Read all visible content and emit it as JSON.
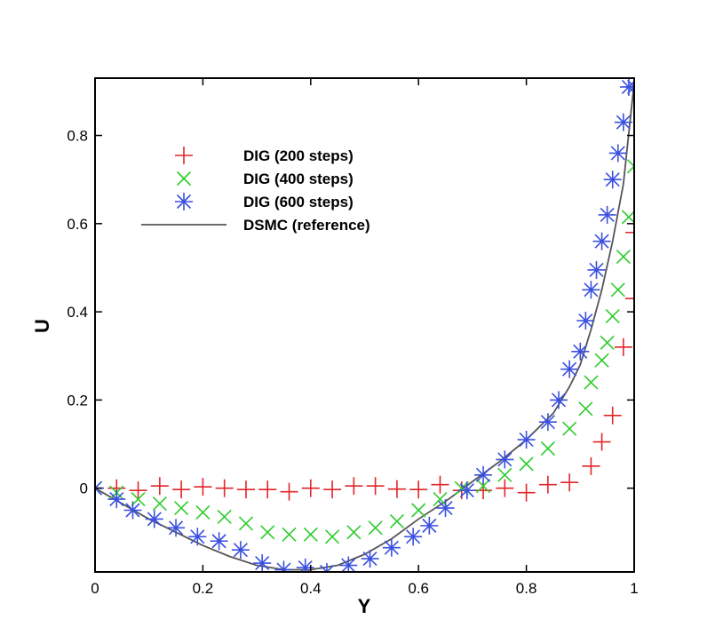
{
  "chart_data": {
    "type": "scatter",
    "title": "",
    "xlabel": "Y",
    "ylabel": "U",
    "xlim": [
      0,
      1
    ],
    "ylim": [
      -0.19,
      0.93
    ],
    "grid": false,
    "legend_position": "top-left",
    "x_ticks": [
      {
        "value": 0,
        "label": "0"
      },
      {
        "value": 0.2,
        "label": "0.2"
      },
      {
        "value": 0.4,
        "label": "0.4"
      },
      {
        "value": 0.6,
        "label": "0.6"
      },
      {
        "value": 0.8,
        "label": "0.8"
      },
      {
        "value": 1,
        "label": "1"
      }
    ],
    "y_ticks": [
      {
        "value": 0,
        "label": "0"
      },
      {
        "value": 0.2,
        "label": "0.2"
      },
      {
        "value": 0.4,
        "label": "0.4"
      },
      {
        "value": 0.6,
        "label": "0.6"
      },
      {
        "value": 0.8,
        "label": "0.8"
      }
    ],
    "series": [
      {
        "name": "DIG (200 steps)",
        "marker": "plus",
        "color": "#e0262a",
        "x": [
          0,
          0.04,
          0.08,
          0.12,
          0.16,
          0.2,
          0.24,
          0.28,
          0.32,
          0.36,
          0.4,
          0.44,
          0.48,
          0.52,
          0.56,
          0.6,
          0.64,
          0.68,
          0.72,
          0.76,
          0.8,
          0.84,
          0.88,
          0.92,
          0.94,
          0.96,
          0.98,
          1.0,
          1.0
        ],
        "y": [
          0,
          0.0,
          -0.005,
          0.005,
          -0.003,
          0.003,
          0.0,
          -0.003,
          -0.003,
          -0.008,
          0.0,
          -0.003,
          0.005,
          0.005,
          -0.002,
          -0.003,
          0.008,
          -0.005,
          -0.005,
          0.0,
          -0.01,
          0.008,
          0.013,
          0.05,
          0.105,
          0.165,
          0.32,
          0.43,
          0.58
        ]
      },
      {
        "name": "DIG (400 steps)",
        "marker": "cross",
        "color": "#2ecc2e",
        "x": [
          0,
          0.04,
          0.08,
          0.12,
          0.16,
          0.2,
          0.24,
          0.28,
          0.32,
          0.36,
          0.4,
          0.44,
          0.48,
          0.52,
          0.56,
          0.6,
          0.64,
          0.68,
          0.72,
          0.76,
          0.8,
          0.84,
          0.88,
          0.91,
          0.92,
          0.94,
          0.95,
          0.96,
          0.97,
          0.98,
          0.99,
          1.0
        ],
        "y": [
          0,
          -0.01,
          -0.025,
          -0.035,
          -0.045,
          -0.055,
          -0.065,
          -0.08,
          -0.1,
          -0.105,
          -0.105,
          -0.11,
          -0.1,
          -0.09,
          -0.075,
          -0.05,
          -0.025,
          0,
          0.005,
          0.03,
          0.055,
          0.09,
          0.135,
          0.18,
          0.24,
          0.29,
          0.33,
          0.39,
          0.45,
          0.525,
          0.615,
          0.73
        ]
      },
      {
        "name": "DIG (600 steps)",
        "marker": "asterisk",
        "color": "#3a4fe0",
        "x": [
          0,
          0.04,
          0.07,
          0.11,
          0.15,
          0.19,
          0.23,
          0.27,
          0.31,
          0.35,
          0.39,
          0.43,
          0.47,
          0.51,
          0.55,
          0.59,
          0.62,
          0.65,
          0.69,
          0.72,
          0.76,
          0.8,
          0.84,
          0.86,
          0.88,
          0.9,
          0.91,
          0.92,
          0.93,
          0.94,
          0.95,
          0.96,
          0.97,
          0.98,
          0.99,
          1.0
        ],
        "y": [
          0,
          -0.025,
          -0.05,
          -0.07,
          -0.09,
          -0.11,
          -0.12,
          -0.14,
          -0.17,
          -0.185,
          -0.18,
          -0.19,
          -0.175,
          -0.16,
          -0.135,
          -0.11,
          -0.085,
          -0.045,
          -0.005,
          0.03,
          0.065,
          0.11,
          0.15,
          0.2,
          0.27,
          0.31,
          0.38,
          0.45,
          0.495,
          0.56,
          0.62,
          0.7,
          0.76,
          0.83,
          0.91,
          0.91
        ]
      },
      {
        "name": "DSMC (reference)",
        "marker": "line",
        "color": "#555555",
        "x": [
          0,
          0.05,
          0.1,
          0.15,
          0.2,
          0.25,
          0.3,
          0.35,
          0.4,
          0.45,
          0.5,
          0.55,
          0.6,
          0.65,
          0.7,
          0.75,
          0.8,
          0.85,
          0.88,
          0.9,
          0.92,
          0.94,
          0.96,
          0.98,
          1.0
        ],
        "y": [
          0,
          -0.035,
          -0.07,
          -0.1,
          -0.13,
          -0.155,
          -0.175,
          -0.185,
          -0.185,
          -0.175,
          -0.15,
          -0.115,
          -0.07,
          -0.03,
          0.015,
          0.06,
          0.11,
          0.17,
          0.23,
          0.28,
          0.36,
          0.45,
          0.56,
          0.69,
          0.92
        ]
      }
    ]
  }
}
